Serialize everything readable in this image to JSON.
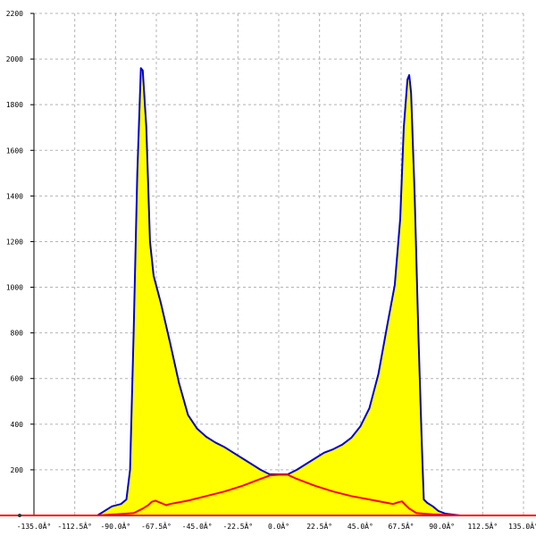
{
  "chart_data": {
    "type": "area",
    "title": "",
    "xlabel": "",
    "ylabel": "",
    "xlim": [
      -135,
      135
    ],
    "ylim": [
      0,
      2200
    ],
    "grid": true,
    "x_ticks": [
      -135,
      -112.5,
      -90,
      -67.5,
      -45,
      -22.5,
      0,
      22.5,
      45,
      67.5,
      90,
      112.5,
      135
    ],
    "x_tick_labels": [
      "-135.0Â°",
      "-112.5Â°",
      "-90.0Â°",
      "-67.5Â°",
      "-45.0Â°",
      "-22.5Â°",
      "0.0Â°",
      "22.5Â°",
      "45.0Â°",
      "67.5Â°",
      "90.0Â°",
      "112.5Â°",
      "135.0Â°"
    ],
    "y_ticks": [
      200,
      400,
      600,
      800,
      1000,
      1200,
      1400,
      1600,
      1800,
      2000,
      2200
    ],
    "y_tick_labels": [
      "200",
      "400",
      "600",
      "800",
      "1000",
      "1200",
      "1400",
      "1600",
      "1800",
      "2000",
      "2200"
    ],
    "series": [
      {
        "color": "#0000cc",
        "fill": "#ffff00",
        "points": [
          [
            -135,
            0
          ],
          [
            -110,
            0
          ],
          [
            -100,
            0
          ],
          [
            -97,
            15
          ],
          [
            -92,
            40
          ],
          [
            -87,
            50
          ],
          [
            -84,
            70
          ],
          [
            -82,
            200
          ],
          [
            -80,
            800
          ],
          [
            -78,
            1500
          ],
          [
            -76,
            1960
          ],
          [
            -75,
            1950
          ],
          [
            -73,
            1700
          ],
          [
            -71,
            1200
          ],
          [
            -69,
            1050
          ],
          [
            -65,
            930
          ],
          [
            -60,
            760
          ],
          [
            -55,
            580
          ],
          [
            -50,
            440
          ],
          [
            -45,
            380
          ],
          [
            -40,
            345
          ],
          [
            -35,
            320
          ],
          [
            -30,
            300
          ],
          [
            -25,
            275
          ],
          [
            -20,
            250
          ],
          [
            -15,
            225
          ],
          [
            -10,
            200
          ],
          [
            -5,
            180
          ],
          [
            0,
            180
          ],
          [
            5,
            180
          ],
          [
            10,
            200
          ],
          [
            15,
            225
          ],
          [
            20,
            250
          ],
          [
            25,
            275
          ],
          [
            30,
            290
          ],
          [
            35,
            310
          ],
          [
            40,
            340
          ],
          [
            45,
            390
          ],
          [
            50,
            470
          ],
          [
            55,
            620
          ],
          [
            60,
            840
          ],
          [
            64,
            1010
          ],
          [
            67,
            1300
          ],
          [
            69,
            1700
          ],
          [
            71,
            1910
          ],
          [
            72,
            1930
          ],
          [
            73,
            1850
          ],
          [
            75,
            1400
          ],
          [
            77,
            800
          ],
          [
            79,
            300
          ],
          [
            80,
            70
          ],
          [
            82,
            55
          ],
          [
            85,
            40
          ],
          [
            88,
            20
          ],
          [
            92,
            8
          ],
          [
            100,
            0
          ],
          [
            135,
            0
          ]
        ]
      },
      {
        "color": "#ff0000",
        "fill": "none",
        "points": [
          [
            -135,
            0
          ],
          [
            -100,
            0
          ],
          [
            -90,
            5
          ],
          [
            -80,
            10
          ],
          [
            -75,
            30
          ],
          [
            -72,
            45
          ],
          [
            -70,
            60
          ],
          [
            -68,
            65
          ],
          [
            -65,
            55
          ],
          [
            -62,
            45
          ],
          [
            -60,
            50
          ],
          [
            -50,
            65
          ],
          [
            -40,
            85
          ],
          [
            -30,
            105
          ],
          [
            -20,
            130
          ],
          [
            -10,
            160
          ],
          [
            -5,
            175
          ],
          [
            0,
            178
          ],
          [
            5,
            178
          ],
          [
            10,
            160
          ],
          [
            20,
            130
          ],
          [
            30,
            105
          ],
          [
            40,
            85
          ],
          [
            50,
            70
          ],
          [
            60,
            55
          ],
          [
            63,
            50
          ],
          [
            66,
            58
          ],
          [
            68,
            62
          ],
          [
            70,
            45
          ],
          [
            72,
            30
          ],
          [
            76,
            10
          ],
          [
            85,
            5
          ],
          [
            100,
            0
          ],
          [
            135,
            0
          ]
        ]
      }
    ]
  }
}
